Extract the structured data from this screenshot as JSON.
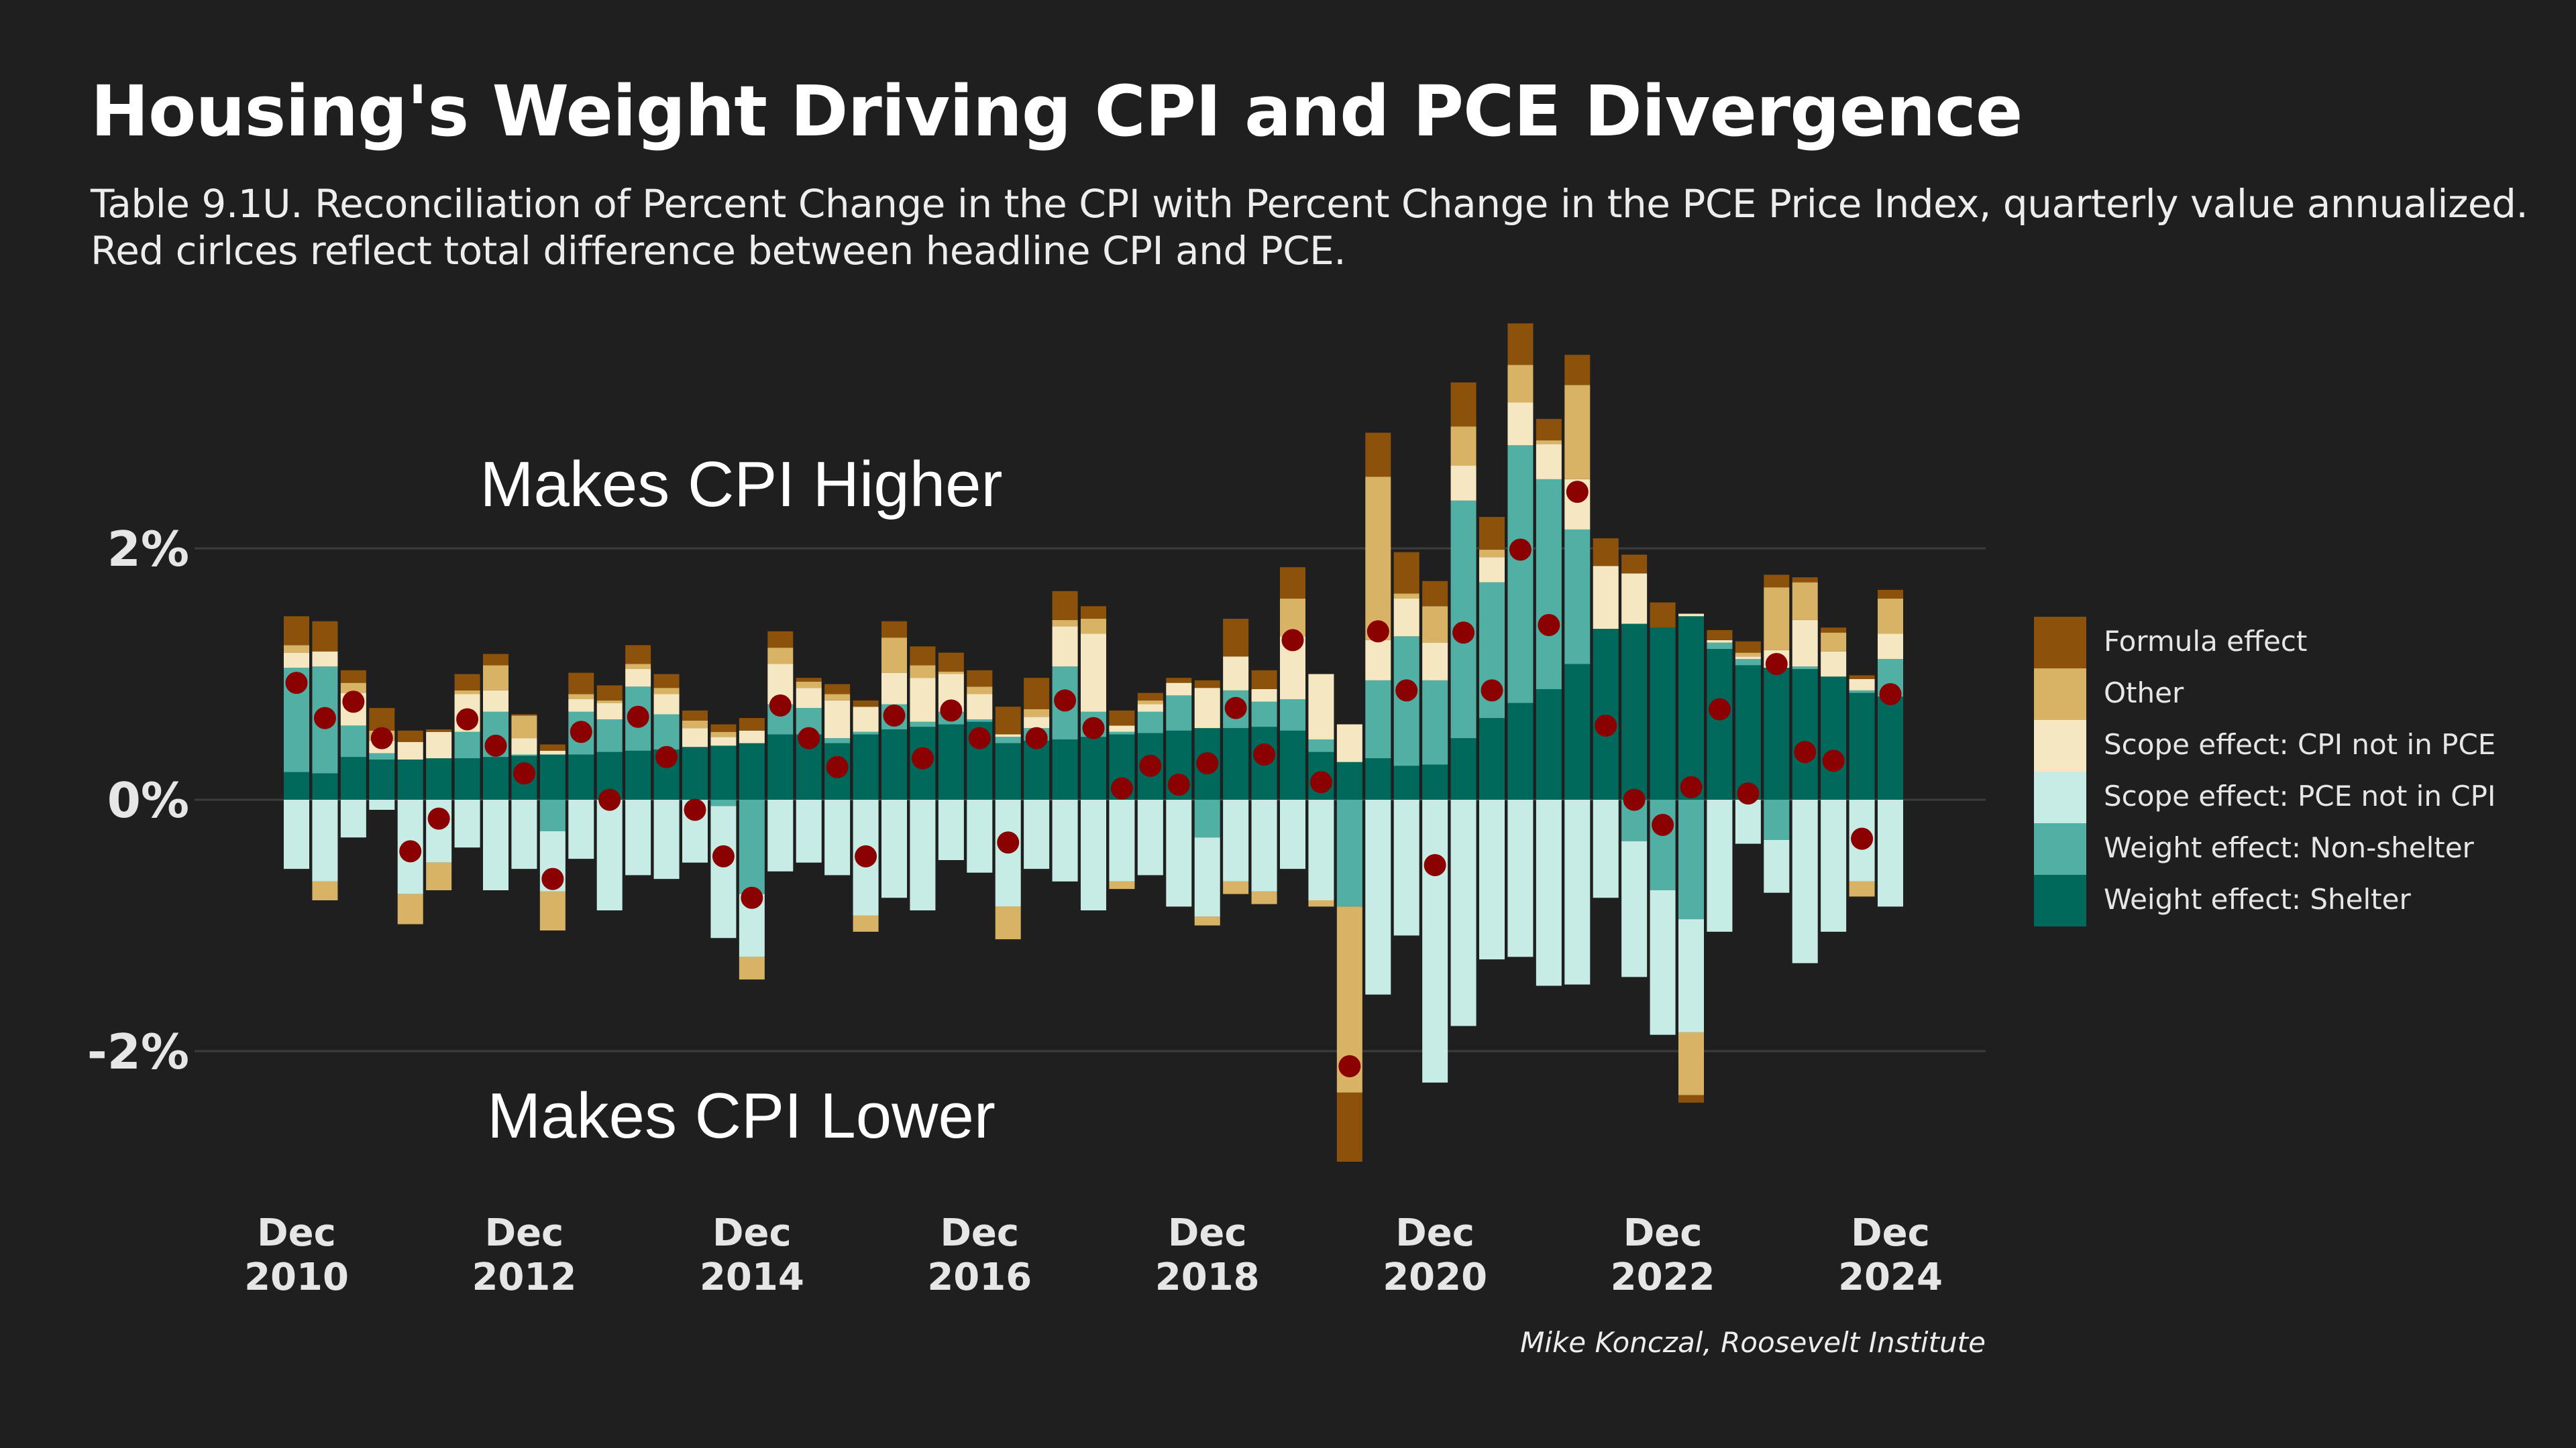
{
  "header": {
    "title": "Housing's Weight Driving CPI and PCE Divergence",
    "subtitle_line1": "Table 9.1U. Reconciliation of Percent Change in the CPI with Percent Change in the PCE Price Index, quarterly value annualized.",
    "subtitle_line2": "Red cirlces reflect total difference between headline CPI and PCE."
  },
  "credit": "Mike Konczal, Roosevelt Institute",
  "chart_data": {
    "type": "bar",
    "stacked": true,
    "annotations": {
      "higher": "Makes CPI Higher",
      "lower": "Makes CPI Lower"
    },
    "y_ticks": [
      {
        "value": 2,
        "label": "2%"
      },
      {
        "value": 0,
        "label": "0%"
      },
      {
        "value": -2,
        "label": "-2%"
      }
    ],
    "ylim": [
      -3.2,
      3.6
    ],
    "x_ticks": [
      {
        "index": 0,
        "label": [
          "Dec",
          "2010"
        ]
      },
      {
        "index": 8,
        "label": [
          "Dec",
          "2012"
        ]
      },
      {
        "index": 16,
        "label": [
          "Dec",
          "2014"
        ]
      },
      {
        "index": 24,
        "label": [
          "Dec",
          "2016"
        ]
      },
      {
        "index": 32,
        "label": [
          "Dec",
          "2018"
        ]
      },
      {
        "index": 40,
        "label": [
          "Dec",
          "2020"
        ]
      },
      {
        "index": 48,
        "label": [
          "Dec",
          "2022"
        ]
      },
      {
        "index": 56,
        "label": [
          "Dec",
          "2024"
        ]
      }
    ],
    "grid": true,
    "legend_position": "right",
    "series": [
      {
        "key": "shelter",
        "name": "Weight effect: Shelter",
        "color": "#00695c"
      },
      {
        "key": "nonshelter",
        "name": "Weight effect: Non-shelter",
        "color": "#52afa4"
      },
      {
        "key": "pce_not_cpi",
        "name": "Scope effect: PCE not in CPI",
        "color": "#c7ebe5"
      },
      {
        "key": "cpi_not_pce",
        "name": "Scope effect: CPI not in PCE",
        "color": "#f6e7c3"
      },
      {
        "key": "other",
        "name": "Other",
        "color": "#d8b365"
      },
      {
        "key": "formula",
        "name": "Formula effect",
        "color": "#8c510a"
      }
    ],
    "legend_order": [
      "formula",
      "other",
      "cpi_not_pce",
      "pce_not_cpi",
      "nonshelter",
      "shelter"
    ],
    "total_marker": {
      "color": "#8b0000",
      "description": "total difference"
    },
    "quarters": [
      {
        "shelter": 0.22,
        "nonshelter": 0.83,
        "pce_not_cpi": -0.55,
        "cpi_not_pce": 0.12,
        "other": 0.06,
        "formula": 0.23,
        "total": 0.93
      },
      {
        "shelter": 0.21,
        "nonshelter": 0.85,
        "pce_not_cpi": -0.65,
        "cpi_not_pce": 0.12,
        "other": -0.15,
        "formula": 0.24,
        "total": 0.65
      },
      {
        "shelter": 0.34,
        "nonshelter": 0.25,
        "pce_not_cpi": -0.3,
        "cpi_not_pce": 0.26,
        "other": 0.08,
        "formula": 0.1,
        "total": 0.78
      },
      {
        "shelter": 0.32,
        "nonshelter": 0.05,
        "pce_not_cpi": -0.08,
        "cpi_not_pce": 0.1,
        "other": 0.08,
        "formula": 0.18,
        "total": 0.49
      },
      {
        "shelter": 0.32,
        "nonshelter": 0,
        "pce_not_cpi": -0.75,
        "cpi_not_pce": 0.14,
        "other": -0.24,
        "formula": 0.09,
        "total": -0.41
      },
      {
        "shelter": 0.33,
        "nonshelter": 0,
        "pce_not_cpi": -0.5,
        "cpi_not_pce": 0.21,
        "other": -0.22,
        "formula": 0.02,
        "total": -0.15
      },
      {
        "shelter": 0.33,
        "nonshelter": 0.21,
        "pce_not_cpi": -0.38,
        "cpi_not_pce": 0.3,
        "other": 0.03,
        "formula": 0.13,
        "total": 0.64
      },
      {
        "shelter": 0.34,
        "nonshelter": 0.36,
        "pce_not_cpi": -0.72,
        "cpi_not_pce": 0.17,
        "other": 0.2,
        "formula": 0.09,
        "total": 0.43
      },
      {
        "shelter": 0.35,
        "nonshelter": 0.01,
        "pce_not_cpi": -0.55,
        "cpi_not_pce": 0.13,
        "other": 0.18,
        "formula": 0.01,
        "total": 0.21
      },
      {
        "shelter": 0.36,
        "nonshelter": -0.25,
        "pce_not_cpi": -0.48,
        "cpi_not_pce": 0.03,
        "other": -0.31,
        "formula": 0.05,
        "total": -0.63
      },
      {
        "shelter": 0.36,
        "nonshelter": 0.34,
        "pce_not_cpi": -0.47,
        "cpi_not_pce": 0.1,
        "other": 0.04,
        "formula": 0.17,
        "total": 0.54
      },
      {
        "shelter": 0.38,
        "nonshelter": 0.26,
        "pce_not_cpi": -0.88,
        "cpi_not_pce": 0.13,
        "other": 0.02,
        "formula": 0.12,
        "total": 0
      },
      {
        "shelter": 0.39,
        "nonshelter": 0.51,
        "pce_not_cpi": -0.6,
        "cpi_not_pce": 0.14,
        "other": 0.04,
        "formula": 0.15,
        "total": 0.66
      },
      {
        "shelter": 0.4,
        "nonshelter": 0.28,
        "pce_not_cpi": -0.63,
        "cpi_not_pce": 0.16,
        "other": 0.05,
        "formula": 0.11,
        "total": 0.34
      },
      {
        "shelter": 0.42,
        "nonshelter": 0,
        "pce_not_cpi": -0.5,
        "cpi_not_pce": 0.15,
        "other": 0.06,
        "formula": 0.08,
        "total": -0.08
      },
      {
        "shelter": 0.43,
        "nonshelter": -0.05,
        "pce_not_cpi": -1.05,
        "cpi_not_pce": 0.07,
        "other": 0.04,
        "formula": 0.06,
        "total": -0.45
      },
      {
        "shelter": 0.45,
        "nonshelter": -0.75,
        "pce_not_cpi": -0.5,
        "cpi_not_pce": 0.1,
        "other": -0.18,
        "formula": 0.1,
        "total": -0.78
      },
      {
        "shelter": 0.52,
        "nonshelter": 0.24,
        "pce_not_cpi": -0.57,
        "cpi_not_pce": 0.32,
        "other": 0.13,
        "formula": 0.13,
        "total": 0.75
      },
      {
        "shelter": 0.52,
        "nonshelter": 0.21,
        "pce_not_cpi": -0.5,
        "cpi_not_pce": 0.16,
        "other": 0.05,
        "formula": 0.03,
        "total": 0.49
      },
      {
        "shelter": 0.45,
        "nonshelter": 0.04,
        "pce_not_cpi": -0.6,
        "cpi_not_pce": 0.3,
        "other": 0.05,
        "formula": 0.08,
        "total": 0.26
      },
      {
        "shelter": 0.52,
        "nonshelter": 0.02,
        "pce_not_cpi": -0.92,
        "cpi_not_pce": 0.2,
        "other": -0.13,
        "formula": 0.05,
        "total": -0.45
      },
      {
        "shelter": 0.56,
        "nonshelter": 0.2,
        "pce_not_cpi": -0.78,
        "cpi_not_pce": 0.25,
        "other": 0.28,
        "formula": 0.13,
        "total": 0.67
      },
      {
        "shelter": 0.58,
        "nonshelter": 0.04,
        "pce_not_cpi": -0.88,
        "cpi_not_pce": 0.35,
        "other": 0.1,
        "formula": 0.15,
        "total": 0.33
      },
      {
        "shelter": 0.6,
        "nonshelter": 0.1,
        "pce_not_cpi": -0.48,
        "cpi_not_pce": 0.3,
        "other": 0.02,
        "formula": 0.15,
        "total": 0.71
      },
      {
        "shelter": 0.62,
        "nonshelter": 0.02,
        "pce_not_cpi": -0.58,
        "cpi_not_pce": 0.2,
        "other": 0.06,
        "formula": 0.13,
        "total": 0.49
      },
      {
        "shelter": 0.45,
        "nonshelter": 0.05,
        "pce_not_cpi": -0.85,
        "cpi_not_pce": 0.02,
        "other": -0.26,
        "formula": 0.22,
        "total": -0.34
      },
      {
        "shelter": 0.47,
        "nonshelter": 0.1,
        "pce_not_cpi": -0.55,
        "cpi_not_pce": 0.09,
        "other": 0.06,
        "formula": 0.25,
        "total": 0.49
      },
      {
        "shelter": 0.48,
        "nonshelter": 0.58,
        "pce_not_cpi": -0.65,
        "cpi_not_pce": 0.32,
        "other": 0.05,
        "formula": 0.23,
        "total": 0.79
      },
      {
        "shelter": 0.5,
        "nonshelter": 0.2,
        "pce_not_cpi": -0.88,
        "cpi_not_pce": 0.62,
        "other": 0.12,
        "formula": 0.1,
        "total": 0.57
      },
      {
        "shelter": 0.52,
        "nonshelter": 0.02,
        "pce_not_cpi": -0.65,
        "cpi_not_pce": 0.05,
        "other": -0.06,
        "formula": 0.12,
        "total": 0.09
      },
      {
        "shelter": 0.53,
        "nonshelter": 0.17,
        "pce_not_cpi": -0.6,
        "cpi_not_pce": 0.06,
        "other": 0.03,
        "formula": 0.06,
        "total": 0.27
      },
      {
        "shelter": 0.55,
        "nonshelter": 0.28,
        "pce_not_cpi": -0.85,
        "cpi_not_pce": 0.1,
        "other": 0,
        "formula": 0.04,
        "total": 0.12
      },
      {
        "shelter": 0.57,
        "nonshelter": -0.3,
        "pce_not_cpi": -0.63,
        "cpi_not_pce": 0.32,
        "other": -0.07,
        "formula": 0.06,
        "total": 0.29
      },
      {
        "shelter": 0.57,
        "nonshelter": 0.3,
        "pce_not_cpi": -0.65,
        "cpi_not_pce": 0.27,
        "other": -0.1,
        "formula": 0.3,
        "total": 0.73
      },
      {
        "shelter": 0.58,
        "nonshelter": 0.2,
        "pce_not_cpi": -0.73,
        "cpi_not_pce": 0.1,
        "other": -0.1,
        "formula": 0.15,
        "total": 0.36
      },
      {
        "shelter": 0.55,
        "nonshelter": 0.25,
        "pce_not_cpi": -0.55,
        "cpi_not_pce": 0.5,
        "other": 0.3,
        "formula": 0.25,
        "total": 1.27
      },
      {
        "shelter": 0.38,
        "nonshelter": 0.1,
        "pce_not_cpi": -0.8,
        "cpi_not_pce": 0.52,
        "other": -0.05,
        "formula": 0,
        "total": 0.14
      },
      {
        "shelter": 0.3,
        "nonshelter": -0.85,
        "pce_not_cpi": 0,
        "cpi_not_pce": 0.3,
        "other": -1.48,
        "formula": -0.55,
        "total": -2.12
      },
      {
        "shelter": 0.33,
        "nonshelter": 0.62,
        "pce_not_cpi": -1.55,
        "cpi_not_pce": 0.32,
        "other": 1.3,
        "formula": 0.35,
        "total": 1.34
      },
      {
        "shelter": 0.27,
        "nonshelter": 1.03,
        "pce_not_cpi": -1.08,
        "cpi_not_pce": 0.3,
        "other": 0.04,
        "formula": 0.33,
        "total": 0.87
      },
      {
        "shelter": 0.28,
        "nonshelter": 0.67,
        "pce_not_cpi": -2.25,
        "cpi_not_pce": 0.3,
        "other": 0.29,
        "formula": 0.2,
        "total": -0.52
      },
      {
        "shelter": 0.49,
        "nonshelter": 1.89,
        "pce_not_cpi": -1.8,
        "cpi_not_pce": 0.28,
        "other": 0.31,
        "formula": 0.35,
        "total": 1.33
      },
      {
        "shelter": 0.65,
        "nonshelter": 1.08,
        "pce_not_cpi": -1.27,
        "cpi_not_pce": 0.2,
        "other": 0.06,
        "formula": 0.26,
        "total": 0.87
      },
      {
        "shelter": 0.77,
        "nonshelter": 2.05,
        "pce_not_cpi": -1.25,
        "cpi_not_pce": 0.34,
        "other": 0.3,
        "formula": 0.33,
        "total": 1.99
      },
      {
        "shelter": 0.88,
        "nonshelter": 1.67,
        "pce_not_cpi": -1.48,
        "cpi_not_pce": 0.28,
        "other": 0.03,
        "formula": 0.17,
        "total": 1.39
      },
      {
        "shelter": 1.08,
        "nonshelter": 1.07,
        "pce_not_cpi": -1.47,
        "cpi_not_pce": 0.4,
        "other": 0.75,
        "formula": 0.24,
        "total": 2.45
      },
      {
        "shelter": 1.36,
        "nonshelter": 0,
        "pce_not_cpi": -0.78,
        "cpi_not_pce": 0.5,
        "other": 0,
        "formula": 0.22,
        "total": 0.59
      },
      {
        "shelter": 1.4,
        "nonshelter": -0.33,
        "pce_not_cpi": -1.08,
        "cpi_not_pce": 0.4,
        "other": 0,
        "formula": 0.15,
        "total": 0
      },
      {
        "shelter": 1.37,
        "nonshelter": -0.72,
        "pce_not_cpi": -1.15,
        "cpi_not_pce": 0,
        "other": 0,
        "formula": 0.2,
        "total": -0.2
      },
      {
        "shelter": 1.46,
        "nonshelter": -0.95,
        "pce_not_cpi": -0.9,
        "cpi_not_pce": 0.02,
        "other": -0.5,
        "formula": -0.06,
        "total": 0.1
      },
      {
        "shelter": 1.2,
        "nonshelter": 0.05,
        "pce_not_cpi": -1.05,
        "cpi_not_pce": 0.02,
        "other": 0,
        "formula": 0.08,
        "total": 0.72
      },
      {
        "shelter": 1.07,
        "nonshelter": 0.05,
        "pce_not_cpi": -0.35,
        "cpi_not_pce": 0.02,
        "other": 0.03,
        "formula": 0.09,
        "total": 0.05
      },
      {
        "shelter": 1.05,
        "nonshelter": -0.32,
        "pce_not_cpi": -0.42,
        "cpi_not_pce": 0.14,
        "other": 0.5,
        "formula": 0.1,
        "total": 1.08
      },
      {
        "shelter": 1.04,
        "nonshelter": 0.02,
        "pce_not_cpi": -1.3,
        "cpi_not_pce": 0.37,
        "other": 0.3,
        "formula": 0.04,
        "total": 0.38
      },
      {
        "shelter": 0.98,
        "nonshelter": 0,
        "pce_not_cpi": -1.05,
        "cpi_not_pce": 0.2,
        "other": 0.15,
        "formula": 0.04,
        "total": 0.31
      },
      {
        "shelter": 0.85,
        "nonshelter": 0.02,
        "pce_not_cpi": -0.65,
        "cpi_not_pce": 0.09,
        "other": -0.12,
        "formula": 0.03,
        "total": -0.31
      },
      {
        "shelter": 0.82,
        "nonshelter": 0.3,
        "pce_not_cpi": -0.85,
        "cpi_not_pce": 0.2,
        "other": 0.28,
        "formula": 0.07,
        "total": 0.84
      }
    ]
  }
}
